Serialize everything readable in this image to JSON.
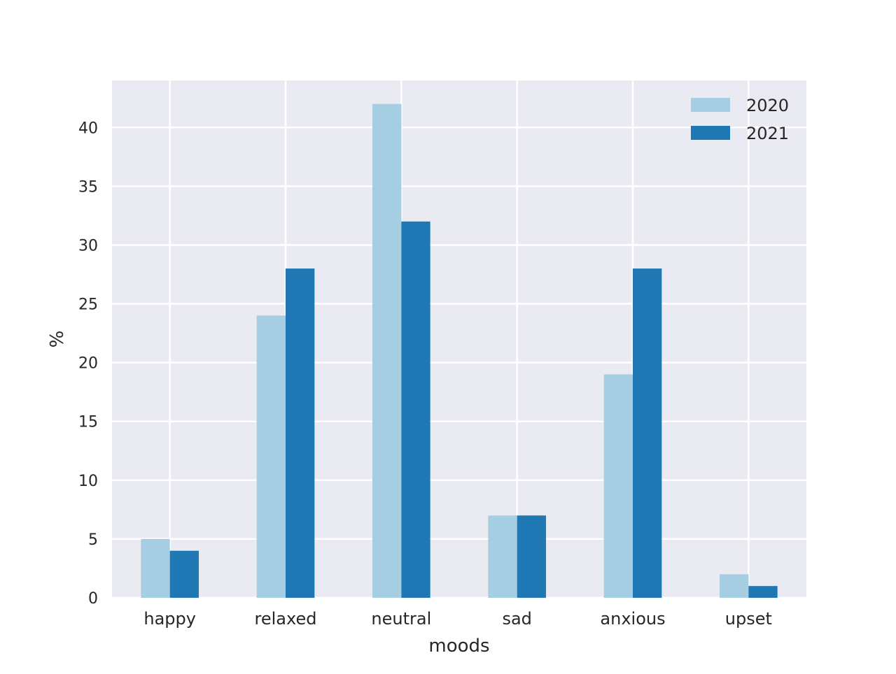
{
  "chart_data": {
    "type": "bar",
    "title": "",
    "xlabel": "moods",
    "ylabel": "%",
    "categories": [
      "happy",
      "relaxed",
      "neutral",
      "sad",
      "anxious",
      "upset"
    ],
    "series": [
      {
        "name": "2020",
        "values": [
          5,
          24,
          42,
          7,
          19,
          2
        ],
        "color": "#a6cee3"
      },
      {
        "name": "2021",
        "values": [
          4,
          28,
          32,
          7,
          28,
          1
        ],
        "color": "#1f78b4"
      }
    ],
    "ylim": [
      0,
      44
    ],
    "yticks": [
      0,
      5,
      10,
      15,
      20,
      25,
      30,
      35,
      40
    ],
    "grid": true,
    "legend_position": "top-right",
    "background_color": "#eaeaf2",
    "grid_color": "#ffffff"
  }
}
